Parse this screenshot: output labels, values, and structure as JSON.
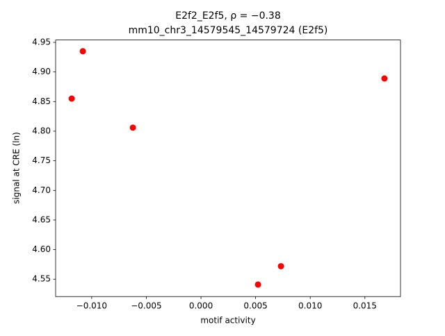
{
  "chart_data": {
    "type": "scatter",
    "title": "E2f2_E2f5, ρ = −0.38",
    "subtitle": "mm10_chr3_14579545_14579724 (E2f5)",
    "x_label": "motif activity",
    "y_label": "signal at CRE (ln)",
    "color": "#ff0000",
    "x": [
      -0.01183,
      -0.01081,
      -0.00623,
      0.00522,
      0.00732,
      0.01679
    ],
    "values": [
      4.855,
      4.935,
      4.806,
      4.541,
      4.572,
      4.889
    ],
    "xlim": [
      -0.0133,
      0.01826
    ],
    "ylim": [
      4.5207,
      4.954
    ],
    "xticks": [
      {
        "value": -0.01,
        "label": "−0.010"
      },
      {
        "value": -0.005,
        "label": "−0.005"
      },
      {
        "value": 0,
        "label": "0.000"
      },
      0.005,
      {
        "value": 0.01,
        "label": "0.010"
      },
      0.015
    ],
    "yticks": [
      4.55,
      {
        "value": 4.6,
        "label": "4.60"
      },
      4.65,
      {
        "value": 4.7,
        "label": "4.70"
      },
      4.75,
      {
        "value": 4.8,
        "label": "4.80"
      },
      4.85,
      {
        "value": 4.9,
        "label": "4.90"
      },
      4.95
    ]
  }
}
